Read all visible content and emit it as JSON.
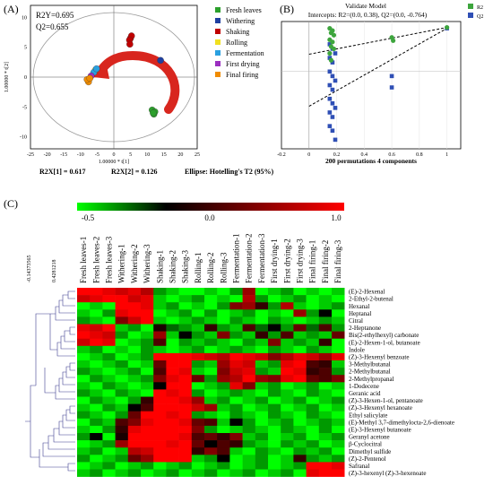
{
  "chart_data": [
    {
      "type": "scatter",
      "panel_label": "(A)",
      "stats": {
        "r2y": "R2Y=0.695",
        "q2": "Q2=0.655"
      },
      "xlabel": "1.00000 * t[1]",
      "ylabel": "1.00000 * t[2]",
      "xlim": [
        -25,
        25
      ],
      "ylim": [
        -12,
        12
      ],
      "x_ticks": [
        -25,
        -20,
        -15,
        -10,
        -5,
        0,
        5,
        10,
        15,
        20,
        25
      ],
      "y_ticks": [
        -10,
        -5,
        0,
        5,
        10
      ],
      "footer": {
        "r2x1": "R2X[1] = 0.617",
        "r2x2": "R2X[2] = 0.126",
        "ellipse": "Ellipse: Hotelling's T2 (95%)"
      },
      "series": [
        {
          "name": "Fresh leaves",
          "color": "#2ca02c",
          "points": [
            [
              11.5,
              -5.5
            ],
            [
              12.0,
              -6.2
            ],
            [
              12.3,
              -5.8
            ],
            [
              11.8,
              -6.0
            ]
          ]
        },
        {
          "name": "Withering",
          "color": "#1f3fa0",
          "points": [
            [
              14.0,
              2.8
            ]
          ]
        },
        {
          "name": "Shaking",
          "color": "#c00000",
          "points": [
            [
              5.0,
              6.5
            ],
            [
              5.3,
              6.9
            ],
            [
              4.7,
              6.2
            ],
            [
              4.8,
              5.5
            ]
          ]
        },
        {
          "name": "Rolling",
          "color": "#f0e020",
          "points": [
            [
              -5.5,
              1.2
            ]
          ]
        },
        {
          "name": "Fermentation",
          "color": "#2aa0e0",
          "points": [
            [
              -6.0,
              0.8
            ],
            [
              -5.2,
              1.4
            ]
          ]
        },
        {
          "name": "First drying",
          "color": "#9b2fc0",
          "points": [
            [
              -6.8,
              0.2
            ]
          ]
        },
        {
          "name": "Final firing",
          "color": "#f08c00",
          "points": [
            [
              -7.6,
              -0.8
            ],
            [
              -8.0,
              -0.4
            ],
            [
              -7.2,
              -0.2
            ]
          ]
        }
      ]
    },
    {
      "type": "scatter",
      "panel_label": "(B)",
      "title": "Validate Model",
      "subtitle": "Intercepts: R2=(0.0, 0.38), Q2=(0.0, -0.764)",
      "xlabel": "200 permutations 4 components",
      "xlim": [
        -0.2,
        1.1
      ],
      "ylim": [
        -1.7,
        1.1
      ],
      "x_ticks": [
        "-0.2",
        "0",
        "0.2",
        "0.4",
        "0.6",
        "0.8",
        "1"
      ],
      "series": [
        {
          "name": "R2",
          "color": "#3da53d",
          "points": [
            [
              0.15,
              0.95
            ],
            [
              0.16,
              0.85
            ],
            [
              0.15,
              0.7
            ],
            [
              0.16,
              0.55
            ],
            [
              0.15,
              0.4
            ],
            [
              0.16,
              0.25
            ],
            [
              0.17,
              0.9
            ],
            [
              0.18,
              0.8
            ],
            [
              0.17,
              0.65
            ],
            [
              0.18,
              0.5
            ],
            [
              0.6,
              0.75
            ],
            [
              0.61,
              0.68
            ],
            [
              1.0,
              0.97
            ]
          ]
        },
        {
          "name": "Q2",
          "color": "#2f4fb5",
          "points": [
            [
              0.15,
              0.6
            ],
            [
              0.15,
              0.3
            ],
            [
              0.15,
              0.0
            ],
            [
              0.15,
              -0.3
            ],
            [
              0.15,
              -0.6
            ],
            [
              0.15,
              -0.9
            ],
            [
              0.15,
              -1.2
            ],
            [
              0.17,
              0.5
            ],
            [
              0.17,
              0.2
            ],
            [
              0.17,
              -0.1
            ],
            [
              0.17,
              -0.4
            ],
            [
              0.17,
              -0.7
            ],
            [
              0.17,
              -1.0
            ],
            [
              0.17,
              -1.3
            ],
            [
              0.19,
              0.4
            ],
            [
              0.19,
              -0.2
            ],
            [
              0.19,
              -0.8
            ],
            [
              0.19,
              -1.5
            ],
            [
              0.6,
              -0.1
            ],
            [
              0.6,
              -0.35
            ],
            [
              1.0,
              0.95
            ]
          ]
        }
      ],
      "fit_lines": [
        [
          [
            0.0,
            0.38
          ],
          [
            1.0,
            0.97
          ]
        ],
        [
          [
            0.0,
            -0.764
          ],
          [
            1.0,
            0.95
          ]
        ]
      ]
    },
    {
      "type": "heatmap",
      "panel_label": "(C)",
      "colorbar": {
        "min_label": "-0.5",
        "mid_label": "0.0",
        "max_label": "1.0"
      },
      "dendrogram_ticks": [
        "-0.14373565",
        "0.4281218"
      ],
      "columns": [
        "Fresh leaves-1",
        "Fresh leaves-2",
        "Fresh leaves-3",
        "Withering-1",
        "Withering-2",
        "Withering-3",
        "Shaking-1",
        "Shaking-2",
        "Shaking-3",
        "Rolling-1",
        "Rolling-2",
        "Rolling-3",
        "Fermentation-1",
        "Fermentation-2",
        "Fermentation-3",
        "First drying-1",
        "First drying-2",
        "First drying-3",
        "Final firing-1",
        "Final firing-2",
        "Final firing-3"
      ],
      "rows": [
        "(E)-2-Hexenal",
        "2-Ethyl-2-butenal",
        "Hexanal",
        "Heptanal",
        "Citral",
        "2-Heptanone",
        "Bis(2-ethylhexyl) carbonate",
        "(E)-2-Hexen-1-ol, butanoate",
        "Indole",
        "(Z)-3-Hexenyl benzoate",
        "3-Methylbutanal",
        "2-Methylbutanal",
        "2-Methylpropanal",
        "1-Dodecene",
        "Geranic acid",
        "(Z)-3-Hexen-1-ol, pentanoate",
        "(Z)-3-Hexenyl hexanoate",
        "Ethyl salicylate",
        "(E)-Methyl 3,7-dimethylocta-2,6-dienoate",
        "(E)-3-Hexenyl butanoate",
        "Geranyl acetone",
        "β-Cyclocitral",
        "Dimethyl sulfide",
        "(Z)-2-Pentenol",
        "Safranal",
        "(Z)-3-hexenyl (Z)-3-hexenoate"
      ],
      "values": [
        [
          1.0,
          1.0,
          0.9,
          0.8,
          0.9,
          0.7,
          -0.3,
          -0.4,
          -0.5,
          -0.5,
          -0.4,
          -0.6,
          -0.3,
          0.6,
          -0.5,
          -0.4,
          -0.3,
          -0.5,
          -0.4,
          -0.5,
          -0.4
        ],
        [
          0.8,
          0.9,
          1.0,
          1.0,
          0.8,
          0.9,
          -0.4,
          -0.5,
          -0.4,
          -0.3,
          -0.5,
          -0.4,
          -0.5,
          0.7,
          -0.3,
          -0.5,
          -0.4,
          -0.3,
          -0.5,
          -0.4,
          -0.5
        ],
        [
          -0.5,
          -0.4,
          -0.5,
          1.0,
          1.0,
          0.9,
          -0.4,
          -0.3,
          -0.5,
          -0.4,
          -0.5,
          -0.3,
          0.5,
          0.6,
          0.2,
          -0.3,
          0.7,
          -0.4,
          -0.5,
          -0.4,
          -0.3
        ],
        [
          -0.4,
          -0.5,
          -0.3,
          0.9,
          1.0,
          1.0,
          -0.5,
          -0.4,
          -0.3,
          -0.5,
          -0.3,
          -0.5,
          -0.4,
          -0.3,
          -0.5,
          -0.4,
          -0.5,
          0.6,
          -0.3,
          0.0,
          -0.5
        ],
        [
          -0.3,
          -0.4,
          -0.5,
          0.5,
          0.8,
          1.0,
          -0.4,
          -0.5,
          -0.4,
          -0.3,
          -0.4,
          -0.5,
          -0.3,
          -0.4,
          -0.5,
          -0.3,
          -0.4,
          -0.5,
          -0.4,
          -0.3,
          -0.4
        ],
        [
          0.9,
          0.8,
          1.0,
          -0.4,
          -0.3,
          -0.5,
          0.1,
          -0.2,
          -0.3,
          -0.4,
          0.2,
          -0.3,
          -0.4,
          0.3,
          -0.2,
          0.0,
          -0.3,
          0.4,
          -0.2,
          0.3,
          -0.3
        ],
        [
          1.0,
          0.9,
          0.8,
          -0.3,
          -0.5,
          -0.4,
          0.6,
          -0.4,
          0.0,
          -0.3,
          -0.4,
          0.5,
          -0.3,
          -0.4,
          0.2,
          -0.3,
          0.3,
          -0.4,
          -0.3,
          -0.4,
          0.4
        ],
        [
          0.8,
          1.0,
          0.9,
          -0.5,
          -0.4,
          -0.3,
          0.3,
          -0.5,
          -0.3,
          -0.4,
          -0.3,
          -0.4,
          -0.5,
          -0.3,
          -0.4,
          0.5,
          -0.4,
          -0.3,
          -0.4,
          0.2,
          -0.5
        ],
        [
          -0.4,
          -0.3,
          -0.5,
          -0.4,
          -0.5,
          -0.3,
          -0.4,
          -0.5,
          -0.4,
          -0.3,
          -0.5,
          -0.4,
          -0.3,
          -0.4,
          -0.5,
          -0.3,
          -0.4,
          -0.5,
          -0.3,
          -0.4,
          -0.5
        ],
        [
          -0.5,
          -0.4,
          -0.3,
          -0.5,
          -0.4,
          -0.3,
          1.0,
          1.0,
          1.0,
          0.9,
          0.8,
          0.7,
          1.0,
          0.9,
          0.8,
          0.5,
          0.7,
          0.9,
          0.8,
          0.6,
          0.9
        ],
        [
          -0.4,
          -0.5,
          -0.4,
          -0.3,
          -0.5,
          -0.4,
          0.4,
          1.0,
          1.0,
          -0.3,
          -0.4,
          0.6,
          0.9,
          0.8,
          -0.4,
          -0.3,
          0.9,
          1.0,
          0.3,
          0.2,
          -0.4
        ],
        [
          -0.3,
          -0.4,
          -0.5,
          -0.4,
          -0.3,
          -0.5,
          0.3,
          1.0,
          0.9,
          -0.4,
          -0.5,
          0.5,
          0.8,
          0.9,
          -0.3,
          -0.4,
          1.0,
          0.9,
          0.2,
          0.3,
          -0.3
        ],
        [
          -0.5,
          -0.3,
          -0.4,
          -0.5,
          -0.4,
          -0.3,
          0.5,
          0.9,
          1.0,
          0.4,
          -0.3,
          0.6,
          0.7,
          1.0,
          0.6,
          0.5,
          0.9,
          1.0,
          0.4,
          0.3,
          0.5
        ],
        [
          -0.4,
          -0.5,
          -0.3,
          -0.4,
          -0.5,
          -0.4,
          0.0,
          1.0,
          1.0,
          -0.5,
          -0.4,
          -0.3,
          0.9,
          0.5,
          -0.4,
          -0.3,
          -0.5,
          -0.4,
          -0.3,
          -0.5,
          -0.4
        ],
        [
          -0.3,
          -0.4,
          -0.5,
          -0.3,
          -0.4,
          -0.5,
          1.0,
          0.9,
          1.0,
          -0.3,
          -0.5,
          -0.4,
          -0.3,
          -0.4,
          -0.5,
          -0.3,
          -0.4,
          -0.5,
          -0.3,
          -0.4,
          -0.5
        ],
        [
          -0.5,
          -0.3,
          -0.4,
          -0.5,
          -0.3,
          0.2,
          1.0,
          1.0,
          0.9,
          0.6,
          -0.4,
          -0.3,
          -0.5,
          -0.4,
          -0.3,
          -0.5,
          -0.4,
          -0.3,
          -0.5,
          -0.4,
          -0.3
        ],
        [
          -0.4,
          -0.5,
          -0.3,
          -0.4,
          0.0,
          0.3,
          1.0,
          1.0,
          1.0,
          0.8,
          0.6,
          -0.4,
          -0.3,
          -0.5,
          -0.4,
          -0.3,
          -0.5,
          -0.4,
          -0.3,
          -0.5,
          -0.4
        ],
        [
          -0.3,
          -0.4,
          -0.5,
          -0.3,
          0.4,
          1.0,
          1.0,
          0.9,
          1.0,
          -0.3,
          -0.4,
          -0.5,
          -0.3,
          -0.4,
          -0.5,
          -0.3,
          -0.4,
          -0.5,
          -0.3,
          -0.4,
          -0.5
        ],
        [
          -0.5,
          -0.3,
          -0.4,
          0.3,
          0.5,
          0.9,
          1.0,
          1.0,
          0.9,
          0.4,
          0.3,
          -0.4,
          0.0,
          -0.3,
          -0.5,
          -0.4,
          -0.3,
          -0.5,
          -0.4,
          -0.3,
          -0.4
        ],
        [
          -0.4,
          -0.5,
          -0.3,
          0.2,
          0.9,
          1.0,
          1.0,
          1.0,
          1.0,
          0.5,
          -0.3,
          -0.5,
          -0.4,
          -0.3,
          -0.4,
          -0.5,
          -0.3,
          -0.4,
          -0.5,
          -0.3,
          -0.5
        ],
        [
          -0.3,
          0.0,
          -0.5,
          0.1,
          1.0,
          1.0,
          1.0,
          1.0,
          0.9,
          0.3,
          0.4,
          0.2,
          0.5,
          -0.4,
          -0.3,
          -0.5,
          -0.4,
          -0.3,
          -0.5,
          -0.4,
          -0.3
        ],
        [
          -0.5,
          -0.4,
          -0.3,
          0.6,
          1.0,
          1.0,
          1.0,
          0.9,
          1.0,
          0.4,
          0.0,
          0.3,
          0.2,
          -0.3,
          -0.4,
          -0.5,
          -0.3,
          -0.4,
          -0.3,
          -0.5,
          -0.4
        ],
        [
          -0.4,
          -0.3,
          -0.5,
          -0.4,
          0.7,
          0.8,
          1.0,
          1.0,
          1.0,
          0.2,
          0.5,
          0.3,
          -0.4,
          -0.5,
          -0.3,
          -0.4,
          -0.5,
          -0.3,
          -0.4,
          -0.3,
          -0.5
        ],
        [
          -0.3,
          -0.5,
          -0.4,
          -0.3,
          0.4,
          0.6,
          1.0,
          1.0,
          1.0,
          -0.4,
          -0.3,
          0.0,
          -0.5,
          -0.4,
          -0.3,
          -0.5,
          -0.4,
          0.2,
          -0.3,
          -0.4,
          -0.3
        ],
        [
          -0.5,
          -0.4,
          -0.3,
          -0.5,
          -0.4,
          -0.3,
          -0.5,
          -0.4,
          -0.3,
          -0.5,
          -0.4,
          -0.3,
          -0.5,
          -0.4,
          -0.3,
          -0.5,
          -0.4,
          -0.3,
          1.0,
          1.0,
          0.9
        ],
        [
          -0.4,
          -0.3,
          -0.5,
          -0.4,
          -0.3,
          -0.5,
          -0.4,
          -0.3,
          -0.5,
          -0.4,
          -0.3,
          -0.5,
          -0.4,
          -0.3,
          -0.5,
          -0.4,
          -0.3,
          -0.5,
          0.9,
          1.0,
          1.0
        ]
      ]
    }
  ]
}
